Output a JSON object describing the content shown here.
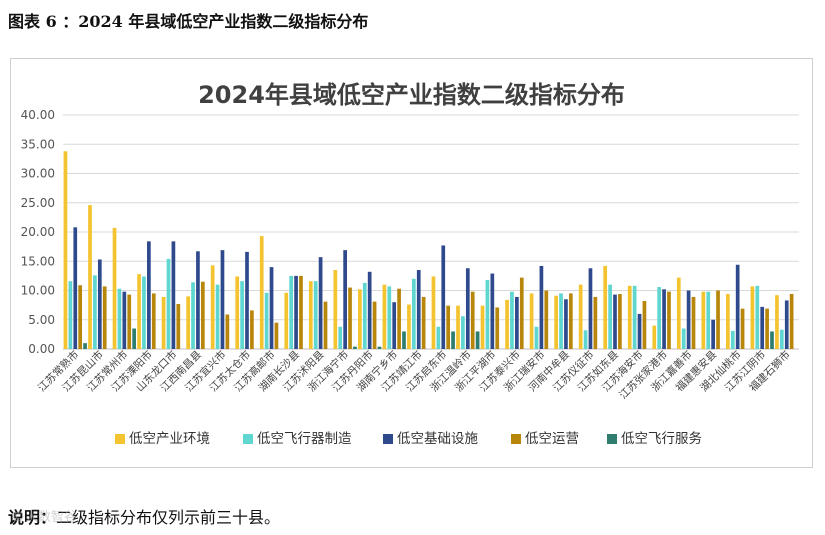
{
  "figure": {
    "caption": "图表 6 ：2024 年县域低空产业指数二级指标分布"
  },
  "note": {
    "label": "说明：",
    "text": "二级指标分布仅列示前三十县。"
  },
  "watermark": {
    "text": "©人数智谷"
  },
  "chart_data": {
    "type": "bar",
    "title": "2024年县域低空产业指数二级指标分布",
    "xlabel": "",
    "ylabel": "",
    "ylim": [
      0,
      40
    ],
    "yticks": [
      "0.00",
      "5.00",
      "10.00",
      "15.00",
      "20.00",
      "25.00",
      "30.00",
      "35.00",
      "40.00"
    ],
    "grid": true,
    "legend_position": "bottom",
    "categories": [
      "江苏常熟市",
      "江苏昆山市",
      "江苏常州市",
      "江苏溧阳市",
      "山东龙口市",
      "江西南昌县",
      "江苏宜兴市",
      "江苏太仓市",
      "江苏高邮市",
      "湖南长沙县",
      "江苏沭阳县",
      "浙江海宁市",
      "江苏丹阳市",
      "湖南宁乡市",
      "江苏靖江市",
      "江苏启东市",
      "浙江温岭市",
      "浙江平湖市",
      "江苏泰兴市",
      "浙江瑞安市",
      "河南中牟县",
      "江苏仪征市",
      "江苏如东县",
      "江苏海安市",
      "江苏张家港市",
      "浙江嘉善市",
      "福建惠安县",
      "湖北仙桃市",
      "江苏江阴市",
      "福建石狮市"
    ],
    "series": [
      {
        "name": "低空产业环境",
        "color": "#F4C430",
        "values": [
          33.8,
          24.6,
          20.7,
          12.8,
          8.9,
          9.0,
          14.3,
          12.4,
          19.3,
          9.6,
          11.6,
          13.5,
          10.2,
          11.0,
          7.6,
          12.4,
          7.4,
          7.4,
          8.4,
          9.5,
          9.1,
          11.0,
          14.2,
          10.8,
          4.0,
          12.2,
          9.8,
          9.4,
          10.7,
          9.2
        ]
      },
      {
        "name": "低空飞行器制造",
        "color": "#5FD6CF",
        "values": [
          11.6,
          12.6,
          10.3,
          12.4,
          15.4,
          11.4,
          11.0,
          11.6,
          9.6,
          12.5,
          11.6,
          3.8,
          11.3,
          10.7,
          12.0,
          3.8,
          5.6,
          11.8,
          9.8,
          3.8,
          9.5,
          3.2,
          11.0,
          10.8,
          10.6,
          3.5,
          9.8,
          3.1,
          10.8,
          3.3
        ]
      },
      {
        "name": "低空基础设施",
        "color": "#2F4A8C",
        "values": [
          20.8,
          15.3,
          9.8,
          18.4,
          18.4,
          16.7,
          16.9,
          16.6,
          14.0,
          12.5,
          15.7,
          16.9,
          13.2,
          8.0,
          13.5,
          17.7,
          13.8,
          12.9,
          8.9,
          14.2,
          8.5,
          13.8,
          9.3,
          6.0,
          10.2,
          10.0,
          5.0,
          14.4,
          7.2,
          8.3
        ]
      },
      {
        "name": "低空运营",
        "color": "#B8860B",
        "values": [
          10.9,
          10.7,
          9.3,
          9.5,
          7.7,
          11.5,
          5.9,
          6.6,
          4.5,
          12.5,
          8.1,
          10.5,
          8.1,
          10.3,
          8.9,
          7.4,
          9.8,
          7.1,
          12.2,
          10.0,
          9.5,
          8.9,
          9.4,
          8.2,
          9.8,
          8.9,
          10.0,
          6.9,
          6.9,
          9.4
        ]
      },
      {
        "name": "低空飞行服务",
        "color": "#2E7D6F",
        "values": [
          1.0,
          0.0,
          3.5,
          0.0,
          0.0,
          0.0,
          0.0,
          0.0,
          0.0,
          0.0,
          0.0,
          0.4,
          0.4,
          3.0,
          0.0,
          3.0,
          3.0,
          0.0,
          0.0,
          0.0,
          0.0,
          0.0,
          0.0,
          0.0,
          0.0,
          0.0,
          0.0,
          0.0,
          3.0,
          0.0
        ]
      }
    ]
  }
}
